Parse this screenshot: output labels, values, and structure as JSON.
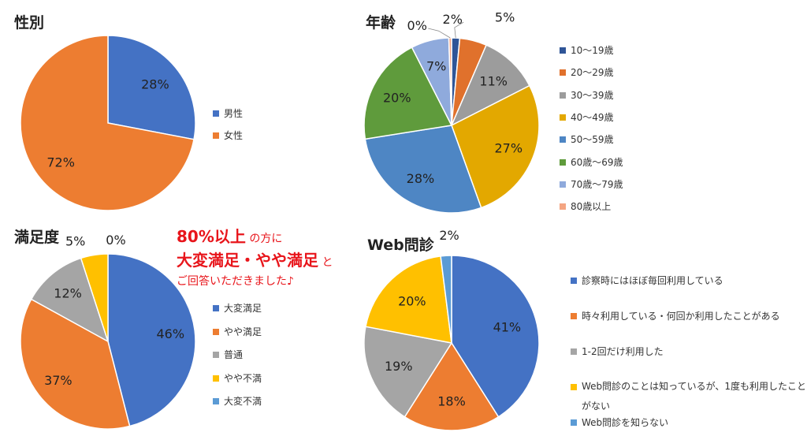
{
  "colors": {
    "blue": "#4472C4",
    "orange": "#ED7D31",
    "gray": "#A5A5A5",
    "gold": "#FFC000",
    "lightblue": "#5B9BD5",
    "green": "#70AD47",
    "age_blue_dark": "#2F5597",
    "age_orange": "#E0712C",
    "age_gray": "#9C9C9C",
    "age_gold": "#E3A800",
    "age_steel": "#4E86C4",
    "age_green": "#5F9B3C",
    "age_lavender": "#8FAADC",
    "age_salmon": "#F4A582",
    "note_red": "#E8151B"
  },
  "chart_data": [
    {
      "id": "gender",
      "type": "pie",
      "title": "性別",
      "categories": [
        "男性",
        "女性"
      ],
      "values": [
        28,
        72
      ],
      "labels": [
        "28%",
        "72%"
      ],
      "color_keys": [
        "blue",
        "orange"
      ],
      "legend_position": "right"
    },
    {
      "id": "age",
      "type": "pie",
      "title": "年齢",
      "categories": [
        "10～19歳",
        "20～29歳",
        "30～39歳",
        "40～49歳",
        "50～59歳",
        "60歳～69歳",
        "70歳～79歳",
        "80歳以上"
      ],
      "values": [
        1.5,
        5,
        11,
        27,
        28,
        20,
        7,
        0.5
      ],
      "labels": [
        "2%",
        "5%",
        "11%",
        "27%",
        "28%",
        "20%",
        "7%",
        "0%"
      ],
      "color_keys": [
        "age_blue_dark",
        "age_orange",
        "age_gray",
        "age_gold",
        "age_steel",
        "age_green",
        "age_lavender",
        "age_salmon"
      ],
      "legend_position": "right"
    },
    {
      "id": "satisfaction",
      "type": "pie",
      "title": "満足度",
      "categories": [
        "大変満足",
        "やや満足",
        "普通",
        "やや不満",
        "大変不満"
      ],
      "values": [
        46,
        37,
        12,
        5,
        0
      ],
      "labels": [
        "46%",
        "37%",
        "12%",
        "5%",
        "0%"
      ],
      "color_keys": [
        "blue",
        "orange",
        "gray",
        "gold",
        "lightblue"
      ],
      "legend_position": "right"
    },
    {
      "id": "web",
      "type": "pie",
      "title": "Web問診",
      "categories": [
        "診察時にはほぼ毎回利用している",
        "時々利用している・何回か利用したことがある",
        "1-2回だけ利用した",
        "Web問診のことは知っているが、1度も利用したことがない",
        "Web問診を知らない"
      ],
      "values": [
        41,
        18,
        19,
        20,
        2
      ],
      "labels": [
        "41%",
        "18%",
        "19%",
        "20%",
        "2%"
      ],
      "color_keys": [
        "blue",
        "orange",
        "gray",
        "gold",
        "lightblue"
      ],
      "legend_position": "right"
    }
  ],
  "note": {
    "line1_em": "80%以上",
    "line1_rest": " の方に",
    "line2_em": "大変満足・やや満足",
    "line2_rest": " と",
    "line3": "ご回答いただきました♪"
  }
}
